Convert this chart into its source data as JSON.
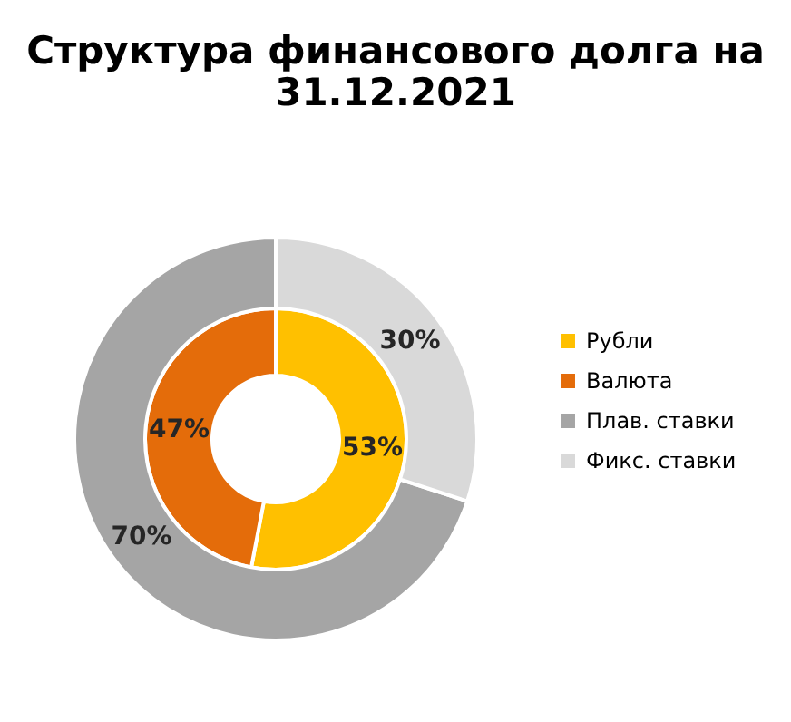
{
  "chart_data": {
    "type": "donut",
    "title": [
      "Структура финансового долга на",
      "31.12.2021"
    ],
    "categories": [
      "Рубли",
      "Валюта",
      "Плав. ставки",
      "Фикс. ставки"
    ],
    "colors": [
      "#ffc000",
      "#e46c0a",
      "#a5a5a5",
      "#d9d9d9"
    ],
    "series": [
      {
        "values": [
          53,
          47,
          null,
          null
        ],
        "value_labels": [
          "53%",
          "47%",
          null,
          null
        ]
      },
      {
        "values": [
          null,
          null,
          70,
          30
        ],
        "value_labels": [
          null,
          null,
          "70%",
          "30%"
        ]
      }
    ],
    "legend": "right"
  }
}
